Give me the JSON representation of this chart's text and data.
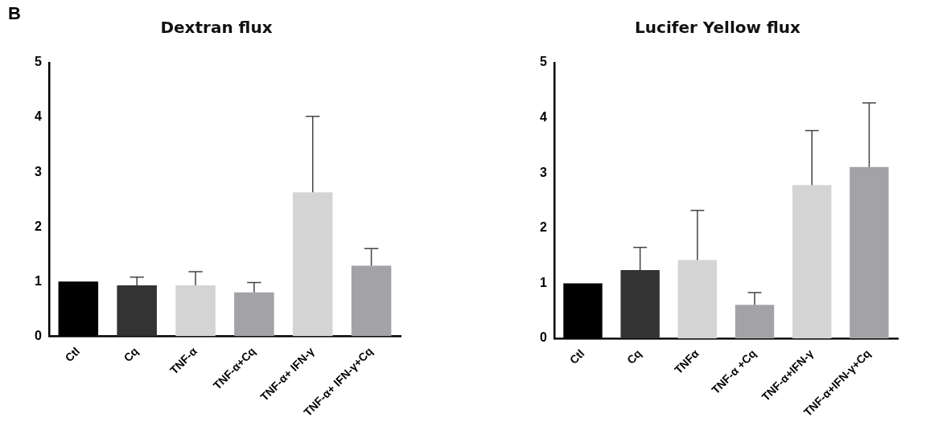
{
  "chart_data": [
    {
      "type": "bar",
      "title": "Dextran flux",
      "annotations": [
        "B"
      ],
      "categories": [
        "Ctl",
        "Cq",
        "TNF-α",
        "TNF-α+Cq",
        "TNF-α+ IFN-γ",
        "TNF-α+ IFN-γ+Cq"
      ],
      "values": [
        1,
        0.93,
        0.93,
        0.8,
        2.63,
        1.29
      ],
      "colors": [
        "#000000",
        "#333333",
        "#d4d4d4",
        "#a3a3a7",
        "#d4d4d4",
        "#a3a3a7"
      ],
      "errors": [
        null,
        [
          0.93,
          1.08
        ],
        [
          0.93,
          1.18
        ],
        [
          0.8,
          0.98
        ],
        [
          2.63,
          4.02
        ],
        [
          1.29,
          1.6
        ]
      ],
      "ylim": [
        0,
        5
      ],
      "yticks": [
        0,
        1,
        2,
        3,
        4,
        5
      ],
      "grid": false,
      "legend": false
    },
    {
      "type": "bar",
      "title": "Lucifer Yellow flux",
      "categories": [
        "Ctl",
        "Cq",
        "TNFα",
        "TNF-α +Cq",
        "TNF-α+IFN-γ",
        "TNF-α+IFN-γ+Cq"
      ],
      "values": [
        1,
        1.24,
        1.42,
        0.61,
        2.78,
        3.11
      ],
      "colors": [
        "#000000",
        "#333333",
        "#d4d4d4",
        "#a3a3a7",
        "#d4d4d4",
        "#a3a3a7"
      ],
      "errors": [
        null,
        [
          1.24,
          1.65
        ],
        [
          1.42,
          2.32
        ],
        [
          0.61,
          0.83
        ],
        [
          2.78,
          3.77
        ],
        [
          3.11,
          4.27
        ]
      ],
      "ylim": [
        0,
        5
      ],
      "yticks": [
        0,
        1,
        2,
        3,
        4,
        5
      ],
      "grid": false,
      "legend": false
    }
  ]
}
